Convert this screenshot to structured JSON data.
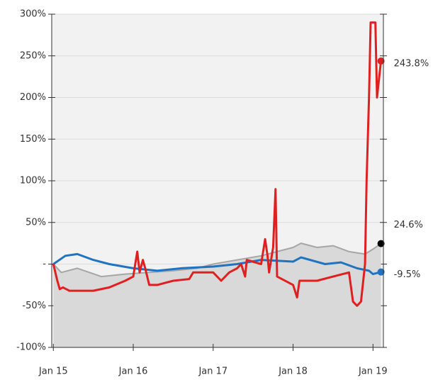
{
  "chart_data": {
    "type": "line",
    "xlim": [
      2014.98,
      2019.13
    ],
    "ylim": [
      -100,
      300
    ],
    "xticks": [
      {
        "value": 2015,
        "label": "Jan 15"
      },
      {
        "value": 2016,
        "label": "Jan 16"
      },
      {
        "value": 2017,
        "label": "Jan 17"
      },
      {
        "value": 2018,
        "label": "Jan 18"
      },
      {
        "value": 2019,
        "label": "Jan 19"
      }
    ],
    "yticks": [
      {
        "value": -100,
        "label": "-100%"
      },
      {
        "value": -50,
        "label": "-50%"
      },
      {
        "value": 0,
        "label": "-"
      },
      {
        "value": 50,
        "label": "50%"
      },
      {
        "value": 100,
        "label": "100%"
      },
      {
        "value": 150,
        "label": "150%"
      },
      {
        "value": 200,
        "label": "200%"
      },
      {
        "value": 250,
        "label": "250%"
      },
      {
        "value": 300,
        "label": "300%"
      }
    ],
    "grid": true,
    "background": "#f2f2f2",
    "series": [
      {
        "color": "#a6a6a6",
        "fill": "#d9d9d9",
        "area": true,
        "x": [
          2015.0,
          2015.1,
          2015.3,
          2015.6,
          2015.9,
          2016.2,
          2016.5,
          2016.8,
          2017.0,
          2017.3,
          2017.6,
          2017.8,
          2018.0,
          2018.1,
          2018.3,
          2018.5,
          2018.7,
          2018.9,
          2019.0,
          2019.1
        ],
        "values": [
          0,
          -10,
          -5,
          -15,
          -12,
          -10,
          -8,
          -5,
          0,
          5,
          10,
          15,
          20,
          25,
          20,
          22,
          15,
          12,
          18,
          24.6
        ],
        "value_labels": [
          null,
          null,
          null,
          null,
          null,
          null,
          null,
          null,
          null,
          null,
          null,
          null,
          null,
          null,
          null,
          null,
          null,
          null,
          null,
          "24.6%"
        ]
      },
      {
        "color": "#1f73c0",
        "x": [
          2015.0,
          2015.15,
          2015.3,
          2015.5,
          2015.7,
          2016.0,
          2016.3,
          2016.6,
          2017.0,
          2017.3,
          2017.6,
          2018.0,
          2018.1,
          2018.4,
          2018.6,
          2018.8,
          2018.95,
          2019.0,
          2019.1
        ],
        "values": [
          0,
          10,
          12,
          5,
          0,
          -5,
          -8,
          -5,
          -3,
          0,
          5,
          3,
          8,
          0,
          2,
          -5,
          -8,
          -12,
          -9.5
        ],
        "value_labels": [
          null,
          null,
          null,
          null,
          null,
          null,
          null,
          null,
          null,
          null,
          null,
          null,
          null,
          null,
          null,
          null,
          null,
          null,
          "-9.5%"
        ]
      },
      {
        "color": "#e02020",
        "x": [
          2015.0,
          2015.05,
          2015.08,
          2015.12,
          2015.2,
          2015.5,
          2015.7,
          2015.9,
          2016.0,
          2016.05,
          2016.08,
          2016.12,
          2016.15,
          2016.2,
          2016.3,
          2016.5,
          2016.7,
          2016.75,
          2017.0,
          2017.1,
          2017.2,
          2017.3,
          2017.35,
          2017.4,
          2017.42,
          2017.6,
          2017.65,
          2017.68,
          2017.7,
          2017.75,
          2017.78,
          2017.8,
          2018.0,
          2018.05,
          2018.08,
          2018.3,
          2018.5,
          2018.7,
          2018.75,
          2018.8,
          2018.85,
          2018.9,
          2018.92,
          2018.95,
          2018.97,
          2019.03,
          2019.05,
          2019.1
        ],
        "values": [
          0,
          -20,
          -30,
          -28,
          -32,
          -32,
          -28,
          -20,
          -15,
          15,
          -10,
          5,
          -5,
          -25,
          -25,
          -20,
          -18,
          -10,
          -10,
          -20,
          -10,
          -5,
          0,
          -15,
          5,
          0,
          30,
          10,
          -10,
          20,
          90,
          -15,
          -25,
          -40,
          -20,
          -20,
          -15,
          -10,
          -45,
          -50,
          -45,
          0,
          100,
          200,
          290,
          290,
          200,
          243.8
        ],
        "value_labels": [
          null,
          null,
          null,
          null,
          null,
          null,
          null,
          null,
          null,
          null,
          null,
          null,
          null,
          null,
          null,
          null,
          null,
          null,
          null,
          null,
          null,
          null,
          null,
          null,
          null,
          null,
          null,
          null,
          null,
          null,
          null,
          null,
          null,
          null,
          null,
          null,
          null,
          null,
          null,
          null,
          null,
          null,
          null,
          null,
          null,
          null,
          null,
          "243.8%"
        ]
      }
    ]
  }
}
